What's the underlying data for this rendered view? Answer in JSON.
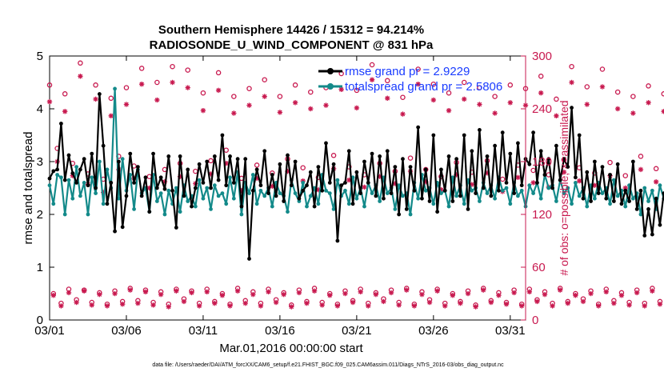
{
  "chart_data": {
    "type": "line",
    "title": "Southern Hemisphere 14426 / 15312 = 94.214%",
    "subtitle": "RADIOSONDE_U_WIND_COMPONENT @ 831 hPa",
    "xlabel": "Mar.01,2016 00:00:00 start",
    "ylabel": "rmse and totalspread",
    "y2label": "# of obs: o=possible; ×=assimilated",
    "footnote": "data file: /Users/raeder/DAI/ATM_forcXX/CAM6_setup/f.e21.FHIST_BGC.f09_025.CAM6assim.011/Diags_NTrS_2016-03/obs_diag_output.nc",
    "xlim": [
      0,
      31
    ],
    "ylim": [
      0,
      5
    ],
    "y2lim": [
      0,
      300
    ],
    "x_ticks": [
      0,
      5,
      10,
      15,
      20,
      25,
      30
    ],
    "x_tick_labels": [
      "03/01",
      "03/06",
      "03/11",
      "03/16",
      "03/21",
      "03/26",
      "03/31"
    ],
    "y_ticks": [
      0,
      1,
      2,
      3,
      4,
      5
    ],
    "y_tick_labels": [
      "0",
      "1",
      "2",
      "3",
      "4",
      "5"
    ],
    "y2_ticks": [
      0,
      60,
      120,
      180,
      240,
      300
    ],
    "y2_tick_labels": [
      "0",
      "60",
      "120",
      "180",
      "240",
      "300"
    ],
    "grid": false,
    "legend_position": "top-right",
    "x_step_days": 0.25,
    "series": [
      {
        "name": "rmse grand pr = 2.9229",
        "color": "#000000",
        "axis": "left",
        "values": [
          2.68,
          2.82,
          2.85,
          3.72,
          2.65,
          3.12,
          2.78,
          2.6,
          2.85,
          3.05,
          2.55,
          3.15,
          2.5,
          4.28,
          3.3,
          2.2,
          2.6,
          1.68,
          3.0,
          1.76,
          2.35,
          3.15,
          2.6,
          2.9,
          2.35,
          2.7,
          2.05,
          3.15,
          2.5,
          2.7,
          2.48,
          3.1,
          2.45,
          1.75,
          3.1,
          2.35,
          2.85,
          2.15,
          2.5,
          2.95,
          2.6,
          3.0,
          2.5,
          3.1,
          2.65,
          3.5,
          2.55,
          3.1,
          2.6,
          3.05,
          2.15,
          3.05,
          1.16,
          2.45,
          2.85,
          2.55,
          3.2,
          2.4,
          2.75,
          2.35,
          2.95,
          2.25,
          3.12,
          2.55,
          3.0,
          2.3,
          2.45,
          2.55,
          2.8,
          2.15,
          2.9,
          2.45,
          3.35,
          2.6,
          2.95,
          1.5,
          2.55,
          2.6,
          3.2,
          2.2,
          2.8,
          2.4,
          3.0,
          2.6,
          3.15,
          2.35,
          3.1,
          2.3,
          3.2,
          2.4,
          2.9,
          2.0,
          3.05,
          2.1,
          2.9,
          2.45,
          3.65,
          2.3,
          2.85,
          2.25,
          3.5,
          2.05,
          2.85,
          2.45,
          3.1,
          2.25,
          3.05,
          2.35,
          3.5,
          2.1,
          3.2,
          2.4,
          3.6,
          2.5,
          3.1,
          2.35,
          3.3,
          2.45,
          3.55,
          2.6,
          3.15,
          2.4,
          3.35,
          2.55,
          3.05,
          2.95,
          3.55,
          2.6,
          3.2,
          2.75,
          3.05,
          2.5,
          3.3,
          2.65,
          3.05,
          2.9,
          4.02,
          2.7,
          3.5,
          2.3,
          2.8,
          2.25,
          3.0,
          2.4,
          2.9,
          2.3,
          2.75,
          2.25,
          2.95,
          2.2,
          2.45,
          2.25,
          3.0,
          2.1,
          2.45,
          1.6,
          2.1,
          1.62,
          2.3,
          1.8,
          2.4,
          1.95,
          3.15,
          2.4,
          2.45,
          2.25,
          2.9,
          2.4,
          2.65,
          2.5,
          2.7,
          2.75
        ]
      },
      {
        "name": "totalspread grand pr = 2.5806",
        "color": "#138a8a",
        "axis": "left",
        "values": [
          2.55,
          2.2,
          2.75,
          2.7,
          2.0,
          2.65,
          2.3,
          2.9,
          2.35,
          2.6,
          2.0,
          2.7,
          2.4,
          3.0,
          2.2,
          2.85,
          2.5,
          4.38,
          2.3,
          3.05,
          2.45,
          2.75,
          2.1,
          2.85,
          2.4,
          2.5,
          2.05,
          2.75,
          2.25,
          2.4,
          2.0,
          2.45,
          2.2,
          2.5,
          2.05,
          2.55,
          2.25,
          2.35,
          2.15,
          2.65,
          2.3,
          2.5,
          2.1,
          2.55,
          2.35,
          2.4,
          2.2,
          2.7,
          2.3,
          2.8,
          2.0,
          2.6,
          2.4,
          2.75,
          2.2,
          2.45,
          2.35,
          2.5,
          2.15,
          2.6,
          2.4,
          2.35,
          2.05,
          2.65,
          2.4,
          2.25,
          2.6,
          2.15,
          2.35,
          2.5,
          2.2,
          2.75,
          2.45,
          2.4,
          2.1,
          2.65,
          2.35,
          2.45,
          2.2,
          2.7,
          2.3,
          2.5,
          2.15,
          2.6,
          2.4,
          2.55,
          2.25,
          2.7,
          2.4,
          2.5,
          2.1,
          2.55,
          2.35,
          2.4,
          2.0,
          2.6,
          2.3,
          2.75,
          2.45,
          2.5,
          2.2,
          2.6,
          2.4,
          2.45,
          2.15,
          2.7,
          2.35,
          2.55,
          2.2,
          2.65,
          2.45,
          2.5,
          2.25,
          2.6,
          2.4,
          2.55,
          2.3,
          2.7,
          2.45,
          2.5,
          2.2,
          2.6,
          2.35,
          2.45,
          2.15,
          2.55,
          2.4,
          2.6,
          2.3,
          2.75,
          2.5,
          2.55,
          2.25,
          2.65,
          2.4,
          2.5,
          2.2,
          2.6,
          2.35,
          2.5,
          2.15,
          2.55,
          2.3,
          2.6,
          2.4,
          2.5,
          2.2,
          2.65,
          2.35,
          2.45,
          2.15,
          2.55,
          2.3,
          2.4,
          2.0,
          2.5,
          2.25,
          2.45,
          2.1,
          2.55,
          2.3,
          2.6,
          2.35,
          2.45,
          2.05,
          2.5,
          2.3,
          2.45,
          2.05,
          2.35,
          2.2,
          2.55,
          1.85,
          2.4,
          2.2
        ]
      }
    ],
    "count_series": [
      {
        "name": "possible",
        "marker": "o",
        "color": "#c8194f",
        "axis": "right",
        "values": [
          267,
          30,
          195,
          19,
          257,
          35,
          178,
          23,
          292,
          34,
          166,
          20,
          267,
          31,
          160,
          18,
          252,
          33,
          186,
          21,
          264,
          36,
          175,
          22,
          286,
          34,
          163,
          20,
          270,
          32,
          171,
          18,
          288,
          35,
          178,
          24,
          284,
          33,
          169,
          19,
          258,
          35,
          181,
          21,
          281,
          30,
          193,
          18,
          254,
          36,
          161,
          22,
          263,
          32,
          176,
          19,
          273,
          35,
          167,
          23,
          254,
          31,
          183,
          17,
          267,
          34,
          173,
          21,
          259,
          36,
          162,
          20,
          264,
          30,
          187,
          18,
          280,
          33,
          174,
          22,
          261,
          35,
          165,
          19,
          290,
          31,
          178,
          24,
          272,
          34,
          169,
          20,
          253,
          36,
          184,
          18,
          285,
          32,
          171,
          23,
          268,
          35,
          163,
          19,
          258,
          30,
          179,
          21,
          270,
          33,
          168,
          17,
          264,
          36,
          181,
          22,
          254,
          31,
          160,
          20,
          267,
          34,
          176,
          18,
          263,
          35,
          170,
          23,
          277,
          32,
          165,
          19,
          251,
          36,
          182,
          21,
          288,
          30,
          173,
          24,
          265,
          33,
          167,
          18,
          285,
          35,
          179,
          22,
          259,
          31,
          164,
          20,
          254,
          34,
          186,
          19,
          266,
          36,
          172,
          21,
          257,
          32,
          169,
          23,
          274,
          35,
          161,
          18,
          266,
          33
        ]
      },
      {
        "name": "assimilated",
        "marker": "x",
        "color": "#c8194f",
        "axis": "right",
        "values": [
          248,
          28,
          180,
          16,
          237,
          31,
          164,
          20,
          277,
          33,
          154,
          17,
          251,
          29,
          145,
          16,
          232,
          30,
          171,
          18,
          245,
          34,
          161,
          19,
          268,
          32,
          150,
          17,
          250,
          29,
          157,
          15,
          270,
          33,
          163,
          21,
          264,
          31,
          155,
          16,
          238,
          32,
          166,
          19,
          261,
          28,
          178,
          16,
          235,
          33,
          147,
          19,
          244,
          29,
          161,
          16,
          254,
          32,
          152,
          20,
          236,
          29,
          169,
          15,
          247,
          31,
          158,
          19,
          240,
          33,
          148,
          17,
          244,
          28,
          172,
          16,
          262,
          30,
          159,
          20,
          241,
          32,
          151,
          16,
          273,
          29,
          163,
          21,
          252,
          31,
          155,
          17,
          234,
          34,
          169,
          16,
          268,
          29,
          157,
          20,
          250,
          33,
          148,
          16,
          238,
          28,
          165,
          19,
          251,
          30,
          154,
          15,
          245,
          34,
          167,
          20,
          235,
          28,
          146,
          18,
          247,
          31,
          162,
          16,
          244,
          32,
          156,
          21,
          258,
          29,
          151,
          16,
          232,
          34,
          168,
          19,
          270,
          28,
          158,
          21,
          245,
          30,
          153,
          16,
          265,
          32,
          164,
          19,
          240,
          28,
          150,
          17,
          235,
          31,
          171,
          16,
          247,
          33,
          157,
          18,
          237,
          29,
          155,
          20,
          255,
          32,
          147,
          16,
          247,
          30
        ]
      }
    ]
  }
}
